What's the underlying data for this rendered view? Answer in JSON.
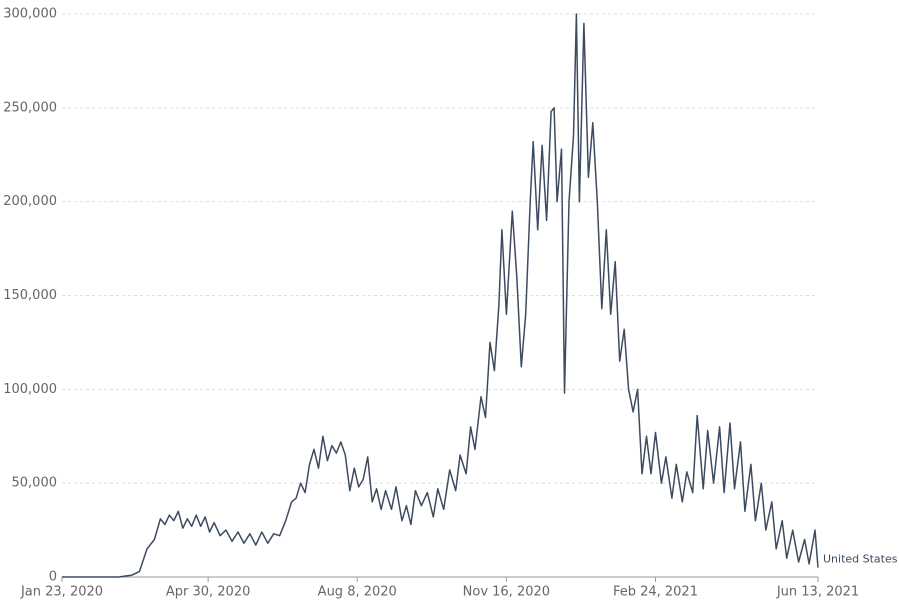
{
  "chart_data": {
    "type": "line",
    "grid": true,
    "xlim": [
      "2020-01-23",
      "2021-06-13"
    ],
    "xticks": [
      {
        "value": "2020-01-23",
        "label": "Jan 23, 2020"
      },
      {
        "value": "2020-04-30",
        "label": "Apr 30, 2020"
      },
      {
        "value": "2020-08-08",
        "label": "Aug 8, 2020"
      },
      {
        "value": "2020-11-16",
        "label": "Nov 16, 2020"
      },
      {
        "value": "2021-02-24",
        "label": "Feb 24, 2021"
      },
      {
        "value": "2021-06-13",
        "label": "Jun 13, 2021"
      }
    ],
    "ylim": [
      0,
      300000
    ],
    "yticks": [
      0,
      {
        "value": 50000,
        "label": "50,000"
      },
      {
        "value": 100000,
        "label": "100,000"
      },
      {
        "value": 150000,
        "label": "150,000"
      },
      {
        "value": 200000,
        "label": "200,000"
      },
      {
        "value": 250000,
        "label": "250,000"
      },
      {
        "value": 300000,
        "label": "300,000"
      }
    ],
    "x": [
      "2020-01-23",
      "2020-03-01",
      "2020-03-10",
      "2020-03-15",
      "2020-03-20",
      "2020-03-25",
      "2020-03-29",
      "2020-04-01",
      "2020-04-04",
      "2020-04-07",
      "2020-04-10",
      "2020-04-13",
      "2020-04-16",
      "2020-04-19",
      "2020-04-22",
      "2020-04-25",
      "2020-04-28",
      "2020-05-01",
      "2020-05-04",
      "2020-05-08",
      "2020-05-12",
      "2020-05-16",
      "2020-05-20",
      "2020-05-24",
      "2020-05-28",
      "2020-06-01",
      "2020-06-05",
      "2020-06-09",
      "2020-06-13",
      "2020-06-17",
      "2020-06-21",
      "2020-06-25",
      "2020-06-28",
      "2020-07-01",
      "2020-07-04",
      "2020-07-07",
      "2020-07-10",
      "2020-07-13",
      "2020-07-16",
      "2020-07-19",
      "2020-07-22",
      "2020-07-25",
      "2020-07-28",
      "2020-07-31",
      "2020-08-03",
      "2020-08-06",
      "2020-08-09",
      "2020-08-12",
      "2020-08-15",
      "2020-08-18",
      "2020-08-21",
      "2020-08-24",
      "2020-08-27",
      "2020-08-31",
      "2020-09-03",
      "2020-09-07",
      "2020-09-10",
      "2020-09-13",
      "2020-09-16",
      "2020-09-20",
      "2020-09-24",
      "2020-09-28",
      "2020-10-01",
      "2020-10-05",
      "2020-10-09",
      "2020-10-13",
      "2020-10-16",
      "2020-10-20",
      "2020-10-23",
      "2020-10-26",
      "2020-10-30",
      "2020-11-02",
      "2020-11-05",
      "2020-11-08",
      "2020-11-11",
      "2020-11-13",
      "2020-11-16",
      "2020-11-20",
      "2020-11-23",
      "2020-11-26",
      "2020-11-29",
      "2020-12-02",
      "2020-12-04",
      "2020-12-07",
      "2020-12-10",
      "2020-12-13",
      "2020-12-16",
      "2020-12-18",
      "2020-12-20",
      "2020-12-23",
      "2020-12-25",
      "2020-12-28",
      "2020-12-31",
      "2021-01-02",
      "2021-01-04",
      "2021-01-07",
      "2021-01-10",
      "2021-01-13",
      "2021-01-16",
      "2021-01-19",
      "2021-01-22",
      "2021-01-25",
      "2021-01-28",
      "2021-01-31",
      "2021-02-03",
      "2021-02-06",
      "2021-02-09",
      "2021-02-12",
      "2021-02-15",
      "2021-02-18",
      "2021-02-21",
      "2021-02-24",
      "2021-02-28",
      "2021-03-03",
      "2021-03-07",
      "2021-03-10",
      "2021-03-14",
      "2021-03-17",
      "2021-03-21",
      "2021-03-24",
      "2021-03-28",
      "2021-03-31",
      "2021-04-04",
      "2021-04-08",
      "2021-04-11",
      "2021-04-15",
      "2021-04-18",
      "2021-04-22",
      "2021-04-25",
      "2021-04-29",
      "2021-05-02",
      "2021-05-06",
      "2021-05-09",
      "2021-05-13",
      "2021-05-16",
      "2021-05-20",
      "2021-05-23",
      "2021-05-27",
      "2021-05-31",
      "2021-06-04",
      "2021-06-07",
      "2021-06-11",
      "2021-06-13"
    ],
    "series": [
      {
        "name": "United States",
        "color": "#3d4b60",
        "values": [
          0,
          0,
          1000,
          3000,
          15000,
          20000,
          31000,
          28000,
          33000,
          30000,
          35000,
          26000,
          31000,
          27000,
          33000,
          27000,
          32000,
          24000,
          29000,
          22000,
          25000,
          19000,
          24000,
          18000,
          23000,
          17000,
          24000,
          18000,
          23000,
          22000,
          30000,
          40000,
          42000,
          50000,
          45000,
          60000,
          68000,
          58000,
          75000,
          62000,
          70000,
          66000,
          72000,
          65000,
          46000,
          58000,
          48000,
          52000,
          64000,
          40000,
          47000,
          36000,
          46000,
          36000,
          48000,
          30000,
          38000,
          28000,
          46000,
          38000,
          45000,
          32000,
          47000,
          36000,
          57000,
          46000,
          65000,
          55000,
          80000,
          68000,
          96000,
          85000,
          125000,
          110000,
          145000,
          185000,
          140000,
          195000,
          160000,
          112000,
          140000,
          200000,
          232000,
          185000,
          230000,
          190000,
          248000,
          250000,
          200000,
          228000,
          98000,
          200000,
          235000,
          300000,
          200000,
          295000,
          213000,
          242000,
          200000,
          143000,
          185000,
          140000,
          168000,
          115000,
          132000,
          100000,
          88000,
          100000,
          55000,
          75000,
          55000,
          77000,
          50000,
          64000,
          42000,
          60000,
          40000,
          56000,
          45000,
          86000,
          47000,
          78000,
          50000,
          80000,
          45000,
          82000,
          47000,
          72000,
          35000,
          60000,
          30000,
          50000,
          25000,
          40000,
          15000,
          30000,
          10000,
          25000,
          8000,
          20000,
          7000,
          25000,
          5000
        ]
      }
    ]
  }
}
